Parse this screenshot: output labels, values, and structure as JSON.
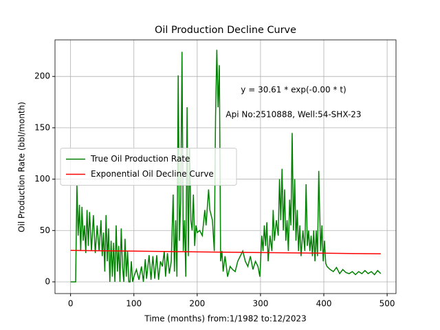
{
  "chart_data": {
    "type": "line",
    "title": "Oil Production Decline Curve",
    "xlabel": "Time (months) from:1/1982 to:12/2023",
    "ylabel": "Oil Production Rate (bbl/month)",
    "annotations": [
      "y = 30.61 * exp(-0.00 * t)",
      "Api No:2510888, Well:54-SHX-23"
    ],
    "xlim": [
      -24.6,
      514
    ],
    "ylim": [
      -11.4,
      235.6
    ],
    "xticks": [
      0,
      100,
      200,
      300,
      400,
      500
    ],
    "yticks": [
      0,
      50,
      100,
      150,
      200
    ],
    "grid": true,
    "legend": "center left",
    "series": [
      {
        "name": "True Oil Production Rate",
        "color": "#008000",
        "x": [
          0,
          8,
          10,
          12,
          14,
          16,
          18,
          20,
          22,
          24,
          26,
          28,
          30,
          33,
          36,
          39,
          42,
          45,
          48,
          50,
          52,
          54,
          56,
          58,
          60,
          62,
          64,
          66,
          68,
          70,
          72,
          74,
          76,
          78,
          80,
          82,
          84,
          86,
          88,
          90,
          92,
          94,
          96,
          98,
          100,
          104,
          108,
          112,
          115,
          118,
          120,
          124,
          127,
          130,
          133,
          136,
          139,
          142,
          145,
          148,
          150,
          153,
          156,
          159,
          162,
          164,
          166,
          168,
          170,
          172,
          174,
          176,
          178,
          180,
          182,
          184,
          186,
          188,
          190,
          192,
          194,
          196,
          198,
          200,
          204,
          208,
          212,
          214,
          218,
          220,
          224,
          227,
          229,
          231,
          233,
          235,
          237,
          239,
          241,
          244,
          248,
          252,
          256,
          260,
          264,
          268,
          272,
          276,
          280,
          284,
          288,
          292,
          296,
          299,
          302,
          304,
          306,
          308,
          310,
          312,
          315,
          318,
          320,
          322,
          325,
          328,
          330,
          332,
          334,
          336,
          338,
          340,
          342,
          344,
          346,
          348,
          350,
          352,
          354,
          356,
          358,
          360,
          362,
          364,
          367,
          370,
          372,
          374,
          376,
          378,
          380,
          382,
          384,
          386,
          388,
          390,
          392,
          393,
          395,
          397,
          399,
          401,
          403,
          405,
          410,
          415,
          420,
          425,
          430,
          435,
          440,
          445,
          450,
          455,
          460,
          465,
          470,
          475,
          480,
          485,
          490
        ],
        "values": [
          0,
          0,
          94,
          45,
          75,
          30,
          73,
          40,
          55,
          28,
          70,
          35,
          68,
          30,
          65,
          28,
          55,
          30,
          60,
          25,
          48,
          10,
          65,
          20,
          52,
          0,
          40,
          5,
          38,
          0,
          55,
          10,
          35,
          0,
          52,
          15,
          0,
          42,
          5,
          30,
          0,
          0,
          20,
          0,
          5,
          12,
          2,
          15,
          0,
          22,
          3,
          26,
          2,
          25,
          3,
          26,
          2,
          20,
          15,
          30,
          5,
          28,
          8,
          20,
          85,
          10,
          60,
          5,
          201,
          40,
          80,
          224,
          30,
          60,
          5,
          170,
          25,
          130,
          60,
          50,
          85,
          35,
          55,
          48,
          50,
          45,
          70,
          55,
          90,
          70,
          60,
          30,
          162,
          226,
          170,
          211,
          20,
          30,
          10,
          25,
          5,
          15,
          12,
          10,
          20,
          25,
          30,
          20,
          15,
          25,
          12,
          20,
          15,
          5,
          45,
          30,
          55,
          35,
          58,
          20,
          45,
          30,
          70,
          40,
          60,
          45,
          100,
          60,
          110,
          50,
          90,
          40,
          60,
          30,
          80,
          55,
          145,
          50,
          100,
          40,
          70,
          30,
          55,
          25,
          50,
          30,
          95,
          35,
          50,
          30,
          45,
          25,
          50,
          20,
          50,
          25,
          108,
          80,
          30,
          55,
          20,
          40,
          18,
          15,
          12,
          10,
          14,
          8,
          12,
          9,
          8,
          10,
          7,
          10,
          8,
          11,
          8,
          10,
          7,
          11,
          8
        ]
      },
      {
        "name": "Exponential Oil Decline Curve",
        "color": "#ff0000",
        "x": [
          0,
          100,
          200,
          300,
          400,
          490
        ],
        "values": [
          30.61,
          29.9,
          29.2,
          28.5,
          27.9,
          27.3
        ]
      }
    ]
  }
}
